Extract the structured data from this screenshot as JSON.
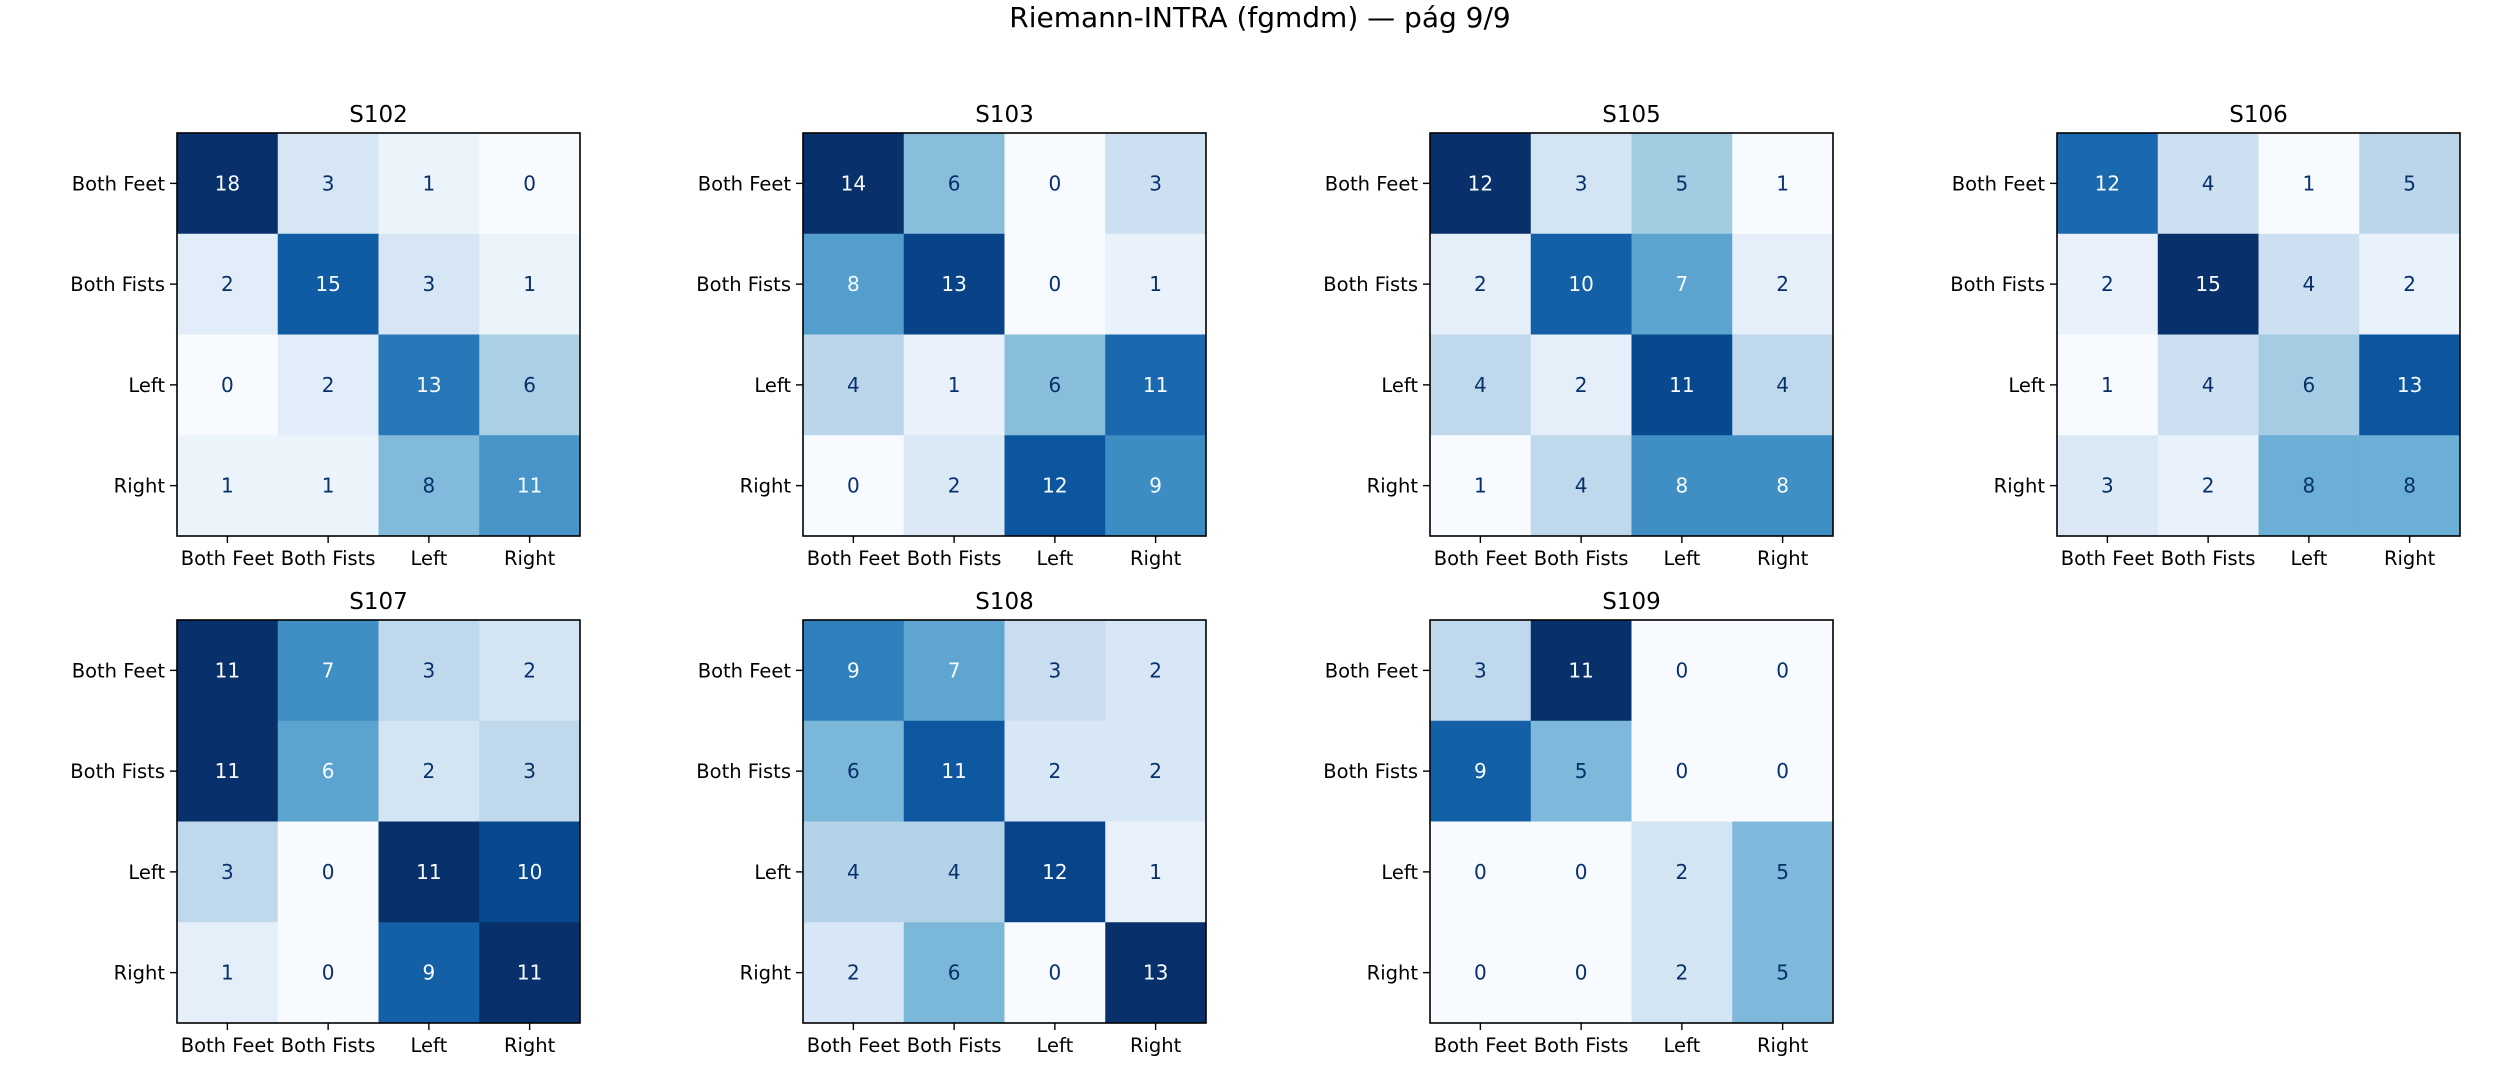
{
  "figure": {
    "suptitle": "Riemann-INTRA (fgmdm) — pág 9/9"
  },
  "chart_data": [
    {
      "type": "heatmap",
      "title": "S102",
      "x_categories": [
        "Both Feet",
        "Both Fists",
        "Left",
        "Right"
      ],
      "y_categories": [
        "Both Feet",
        "Both Fists",
        "Left",
        "Right"
      ],
      "values": [
        [
          18,
          3,
          1,
          0
        ],
        [
          2,
          15,
          3,
          1
        ],
        [
          0,
          2,
          13,
          6
        ],
        [
          1,
          1,
          8,
          11
        ]
      ],
      "colormap": "Blues"
    },
    {
      "type": "heatmap",
      "title": "S103",
      "x_categories": [
        "Both Feet",
        "Both Fists",
        "Left",
        "Right"
      ],
      "y_categories": [
        "Both Feet",
        "Both Fists",
        "Left",
        "Right"
      ],
      "values": [
        [
          14,
          6,
          0,
          3
        ],
        [
          8,
          13,
          0,
          1
        ],
        [
          4,
          1,
          6,
          11
        ],
        [
          0,
          2,
          12,
          9
        ]
      ],
      "colormap": "Blues"
    },
    {
      "type": "heatmap",
      "title": "S105",
      "x_categories": [
        "Both Feet",
        "Both Fists",
        "Left",
        "Right"
      ],
      "y_categories": [
        "Both Feet",
        "Both Fists",
        "Left",
        "Right"
      ],
      "values": [
        [
          12,
          3,
          5,
          1
        ],
        [
          2,
          10,
          7,
          2
        ],
        [
          4,
          2,
          11,
          4
        ],
        [
          1,
          4,
          8,
          8
        ]
      ],
      "colormap": "Blues"
    },
    {
      "type": "heatmap",
      "title": "S106",
      "x_categories": [
        "Both Feet",
        "Both Fists",
        "Left",
        "Right"
      ],
      "y_categories": [
        "Both Feet",
        "Both Fists",
        "Left",
        "Right"
      ],
      "values": [
        [
          12,
          4,
          1,
          5
        ],
        [
          2,
          15,
          4,
          2
        ],
        [
          1,
          4,
          6,
          13
        ],
        [
          3,
          2,
          8,
          8
        ]
      ],
      "colormap": "Blues"
    },
    {
      "type": "heatmap",
      "title": "S107",
      "x_categories": [
        "Both Feet",
        "Both Fists",
        "Left",
        "Right"
      ],
      "y_categories": [
        "Both Feet",
        "Both Fists",
        "Left",
        "Right"
      ],
      "values": [
        [
          11,
          7,
          3,
          2
        ],
        [
          11,
          6,
          2,
          3
        ],
        [
          3,
          0,
          11,
          10
        ],
        [
          1,
          0,
          9,
          11
        ]
      ],
      "colormap": "Blues"
    },
    {
      "type": "heatmap",
      "title": "S108",
      "x_categories": [
        "Both Feet",
        "Both Fists",
        "Left",
        "Right"
      ],
      "y_categories": [
        "Both Feet",
        "Both Fists",
        "Left",
        "Right"
      ],
      "values": [
        [
          9,
          7,
          3,
          2
        ],
        [
          6,
          11,
          2,
          2
        ],
        [
          4,
          4,
          12,
          1
        ],
        [
          2,
          6,
          0,
          13
        ]
      ],
      "colormap": "Blues"
    },
    {
      "type": "heatmap",
      "title": "S109",
      "x_categories": [
        "Both Feet",
        "Both Fists",
        "Left",
        "Right"
      ],
      "y_categories": [
        "Both Feet",
        "Both Fists",
        "Left",
        "Right"
      ],
      "values": [
        [
          3,
          11,
          0,
          0
        ],
        [
          9,
          5,
          0,
          0
        ],
        [
          0,
          0,
          2,
          5
        ],
        [
          0,
          0,
          2,
          5
        ]
      ],
      "colormap": "Blues"
    }
  ]
}
